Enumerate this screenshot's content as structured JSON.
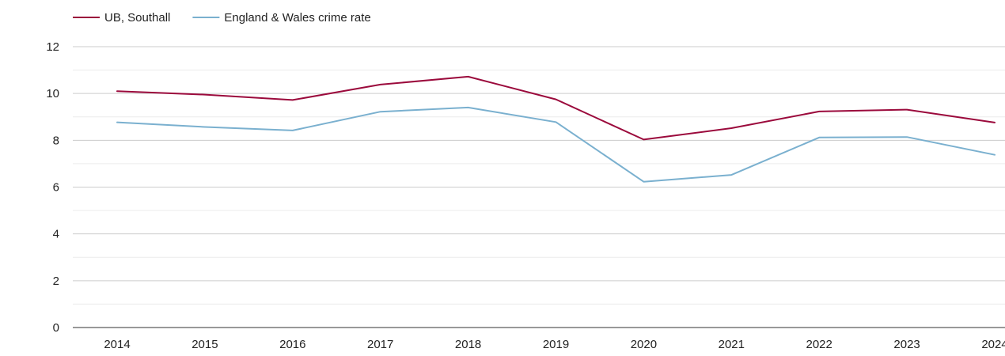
{
  "chart_data": {
    "type": "line",
    "title": "",
    "xlabel": "",
    "ylabel": "",
    "x": [
      "2014",
      "2015",
      "2016",
      "2017",
      "2018",
      "2019",
      "2020",
      "2021",
      "2022",
      "2023",
      "2024"
    ],
    "ylim": [
      0,
      12
    ],
    "y_ticks": [
      0,
      2,
      4,
      6,
      8,
      10,
      12
    ],
    "grid": true,
    "legend_position": "top-left",
    "series": [
      {
        "name": "UB, Southall",
        "color": "#9b0a3c",
        "values": [
          10.1,
          9.95,
          9.72,
          10.38,
          10.72,
          9.75,
          8.03,
          8.52,
          9.23,
          9.31,
          8.76
        ]
      },
      {
        "name": "England & Wales crime rate",
        "color": "#7ab0cf",
        "values": [
          8.77,
          8.57,
          8.42,
          9.22,
          9.4,
          8.78,
          6.23,
          6.52,
          8.12,
          8.14,
          7.38
        ]
      }
    ]
  }
}
